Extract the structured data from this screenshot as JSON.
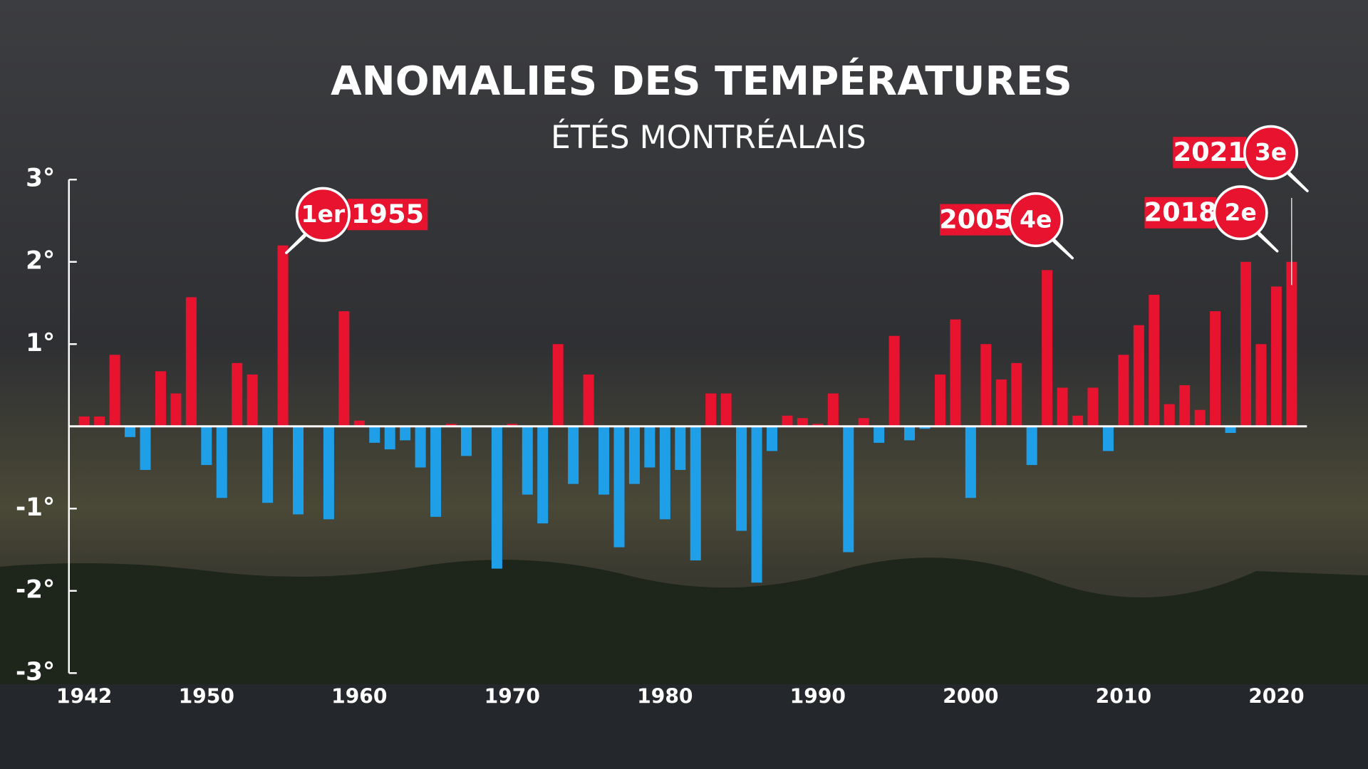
{
  "chart_data": {
    "type": "bar",
    "title": "ANOMALIES DES TEMPÉRATURES",
    "subtitle": "ÉTÉS MONTRÉALAIS",
    "x": [
      1942,
      1943,
      1944,
      1945,
      1946,
      1947,
      1948,
      1949,
      1950,
      1951,
      1952,
      1953,
      1954,
      1955,
      1956,
      1957,
      1958,
      1959,
      1960,
      1961,
      1962,
      1963,
      1964,
      1965,
      1966,
      1967,
      1968,
      1969,
      1970,
      1971,
      1972,
      1973,
      1974,
      1975,
      1976,
      1977,
      1978,
      1979,
      1980,
      1981,
      1982,
      1983,
      1984,
      1985,
      1986,
      1987,
      1988,
      1989,
      1990,
      1991,
      1992,
      1993,
      1994,
      1995,
      1996,
      1997,
      1998,
      1999,
      2000,
      2001,
      2002,
      2003,
      2004,
      2005,
      2006,
      2007,
      2008,
      2009,
      2010,
      2011,
      2012,
      2013,
      2014,
      2015,
      2016,
      2017,
      2018,
      2019,
      2020,
      2021
    ],
    "values": [
      0.12,
      0.12,
      0.87,
      -0.13,
      -0.53,
      0.67,
      0.4,
      1.57,
      -0.47,
      -0.87,
      0.77,
      0.63,
      -0.93,
      2.2,
      -1.07,
      0,
      -1.13,
      1.4,
      0.07,
      -0.2,
      -0.28,
      -0.17,
      -0.5,
      -1.1,
      0.03,
      -0.36,
      0,
      -1.73,
      0.03,
      -0.83,
      -1.18,
      1.0,
      -0.7,
      0.63,
      -0.83,
      -1.47,
      -0.7,
      -0.5,
      -1.13,
      -0.53,
      -1.63,
      0.4,
      0.4,
      -1.27,
      -1.9,
      -0.3,
      0.13,
      0.1,
      0.03,
      0.4,
      -1.53,
      0.1,
      -0.2,
      1.1,
      -0.17,
      -0.03,
      0.63,
      1.3,
      -0.87,
      1.0,
      0.57,
      0.77,
      -0.47,
      1.9,
      0.47,
      0.13,
      0.47,
      -0.3,
      0.87,
      1.23,
      1.6,
      0.27,
      0.5,
      0.2,
      1.4,
      -0.08,
      2.0,
      1.0,
      1.7,
      2.0
    ],
    "colors": {
      "positive": "#e8132e",
      "negative": "#1f9fe8"
    },
    "xlim": [
      1941,
      2022
    ],
    "xticks": [
      1942,
      1950,
      1960,
      1970,
      1980,
      1990,
      2000,
      2010,
      2020
    ],
    "ylim": [
      -3,
      3
    ],
    "yticks": [
      {
        "value": 3,
        "label": "3°"
      },
      {
        "value": 2,
        "label": "2°"
      },
      {
        "value": 1,
        "label": "1°"
      },
      {
        "value": -1,
        "label": "-1°"
      },
      {
        "value": -2,
        "label": "-2°"
      },
      {
        "value": -3,
        "label": "-3°"
      }
    ],
    "annotations": [
      {
        "x": 1955,
        "rank": "1er",
        "label": "1955"
      },
      {
        "x": 2005,
        "rank": "4e",
        "label": "2005"
      },
      {
        "x": 2018,
        "rank": "2e",
        "label": "2018"
      },
      {
        "x": 2021,
        "rank": "3e",
        "label": "2021"
      }
    ]
  }
}
